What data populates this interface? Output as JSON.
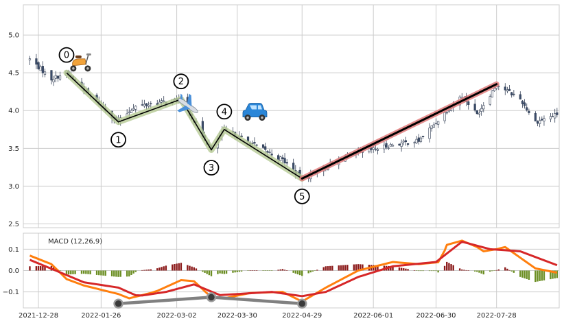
{
  "chart_data": [
    {
      "type": "candlestick",
      "x_start": "2021-12-21",
      "x_end": "2022-08-26",
      "x_ticks": [
        "2021-12-28",
        "2022-01-26",
        "2022-03-02",
        "2022-03-30",
        "2022-04-29",
        "2022-06-01",
        "2022-06-30",
        "2022-07-28"
      ],
      "y_ticks": [
        "2.5",
        "3.0",
        "3.5",
        "4.0",
        "4.5",
        "5.0"
      ],
      "ylim": [
        2.45,
        5.4
      ],
      "grid": true,
      "colors": {
        "up": "#ffffff",
        "down": "#3b4d6b",
        "edge": "#333f55",
        "wave": "#000000",
        "wave_halo": "#b7cb95",
        "trend": "#000000",
        "trend_halo": "#e07b7b",
        "grid": "#cccccc"
      },
      "price_anchors": [
        {
          "date": "2021-12-24",
          "close": 4.68
        },
        {
          "date": "2022-01-03",
          "close": 4.42
        },
        {
          "date": "2022-01-10",
          "close": 4.5
        },
        {
          "date": "2022-02-03",
          "close": 3.85
        },
        {
          "date": "2022-02-10",
          "close": 4.05
        },
        {
          "date": "2022-03-04",
          "close": 4.15
        },
        {
          "date": "2022-03-18",
          "close": 3.48
        },
        {
          "date": "2022-03-24",
          "close": 3.75
        },
        {
          "date": "2022-04-20",
          "close": 3.35
        },
        {
          "date": "2022-04-29",
          "close": 3.1
        },
        {
          "date": "2022-05-20",
          "close": 3.4
        },
        {
          "date": "2022-06-10",
          "close": 3.55
        },
        {
          "date": "2022-06-22",
          "close": 3.6
        },
        {
          "date": "2022-07-05",
          "close": 4.0
        },
        {
          "date": "2022-07-12",
          "close": 4.2
        },
        {
          "date": "2022-07-19",
          "close": 3.95
        },
        {
          "date": "2022-07-28",
          "close": 4.35
        },
        {
          "date": "2022-08-08",
          "close": 4.15
        },
        {
          "date": "2022-08-15",
          "close": 3.85
        },
        {
          "date": "2022-08-25",
          "close": 3.95
        }
      ],
      "wave_points": [
        {
          "label": "0",
          "date": "2022-01-10",
          "value": 4.5
        },
        {
          "label": "1",
          "date": "2022-02-03",
          "value": 3.85
        },
        {
          "label": "2",
          "date": "2022-03-04",
          "value": 4.15
        },
        {
          "label": "3",
          "date": "2022-03-18",
          "value": 3.48
        },
        {
          "label": "4",
          "date": "2022-03-24",
          "value": 3.75
        },
        {
          "label": "5",
          "date": "2022-04-29",
          "value": 3.1
        }
      ],
      "trend_line": [
        {
          "date": "2022-04-29",
          "value": 3.1
        },
        {
          "date": "2022-07-28",
          "value": 4.35
        }
      ],
      "annotations": [
        {
          "icon": "scooter-icon",
          "date": "2022-01-16",
          "value": 4.63
        },
        {
          "icon": "airplane-icon",
          "date": "2022-03-07",
          "value": 4.07
        },
        {
          "icon": "car-icon",
          "date": "2022-04-07",
          "value": 3.97
        }
      ]
    },
    {
      "type": "macd",
      "title": "MACD (12,26,9)",
      "y_ticks": [
        "−0.1",
        "0.0",
        "0.1"
      ],
      "ylim": [
        -0.175,
        0.175
      ],
      "grid": true,
      "colors": {
        "macd": "#ff7f0e",
        "signal": "#d62728",
        "hist_pos": "#8b1a1a",
        "hist_neg": "#6b8e23",
        "divergence": "#808080"
      },
      "macd_anchors": [
        {
          "date": "2021-12-24",
          "value": 0.07
        },
        {
          "date": "2022-01-03",
          "value": 0.03
        },
        {
          "date": "2022-01-10",
          "value": -0.04
        },
        {
          "date": "2022-01-18",
          "value": -0.07
        },
        {
          "date": "2022-02-03",
          "value": -0.11
        },
        {
          "date": "2022-02-08",
          "value": -0.13
        },
        {
          "date": "2022-02-20",
          "value": -0.1
        },
        {
          "date": "2022-03-04",
          "value": -0.045
        },
        {
          "date": "2022-03-10",
          "value": -0.05
        },
        {
          "date": "2022-03-18",
          "value": -0.125
        },
        {
          "date": "2022-03-24",
          "value": -0.13
        },
        {
          "date": "2022-04-05",
          "value": -0.105
        },
        {
          "date": "2022-04-20",
          "value": -0.1
        },
        {
          "date": "2022-04-29",
          "value": -0.145
        },
        {
          "date": "2022-05-10",
          "value": -0.08
        },
        {
          "date": "2022-05-25",
          "value": 0.0
        },
        {
          "date": "2022-06-10",
          "value": 0.04
        },
        {
          "date": "2022-06-22",
          "value": 0.03
        },
        {
          "date": "2022-07-02",
          "value": 0.04
        },
        {
          "date": "2022-07-05",
          "value": 0.12
        },
        {
          "date": "2022-07-12",
          "value": 0.14
        },
        {
          "date": "2022-07-19",
          "value": 0.11
        },
        {
          "date": "2022-07-22",
          "value": 0.09
        },
        {
          "date": "2022-07-28",
          "value": 0.1
        },
        {
          "date": "2022-08-01",
          "value": 0.11
        },
        {
          "date": "2022-08-08",
          "value": 0.06
        },
        {
          "date": "2022-08-15",
          "value": 0.01
        },
        {
          "date": "2022-08-25",
          "value": -0.01
        }
      ],
      "signal_anchors": [
        {
          "date": "2021-12-24",
          "value": 0.05
        },
        {
          "date": "2022-01-05",
          "value": 0.0
        },
        {
          "date": "2022-01-18",
          "value": -0.055
        },
        {
          "date": "2022-02-03",
          "value": -0.08
        },
        {
          "date": "2022-02-12",
          "value": -0.12
        },
        {
          "date": "2022-02-25",
          "value": -0.1
        },
        {
          "date": "2022-03-10",
          "value": -0.065
        },
        {
          "date": "2022-03-22",
          "value": -0.115
        },
        {
          "date": "2022-04-15",
          "value": -0.1
        },
        {
          "date": "2022-04-29",
          "value": -0.12
        },
        {
          "date": "2022-05-10",
          "value": -0.1
        },
        {
          "date": "2022-05-25",
          "value": -0.03
        },
        {
          "date": "2022-06-10",
          "value": 0.02
        },
        {
          "date": "2022-06-30",
          "value": 0.04
        },
        {
          "date": "2022-07-12",
          "value": 0.135
        },
        {
          "date": "2022-07-25",
          "value": 0.1
        },
        {
          "date": "2022-08-08",
          "value": 0.09
        },
        {
          "date": "2022-08-25",
          "value": 0.025
        }
      ],
      "divergence_lines": [
        [
          {
            "date": "2022-02-03",
            "value": -0.155
          },
          {
            "date": "2022-03-18",
            "value": -0.125
          },
          {
            "date": "2022-04-29",
            "value": -0.155
          }
        ]
      ]
    }
  ]
}
